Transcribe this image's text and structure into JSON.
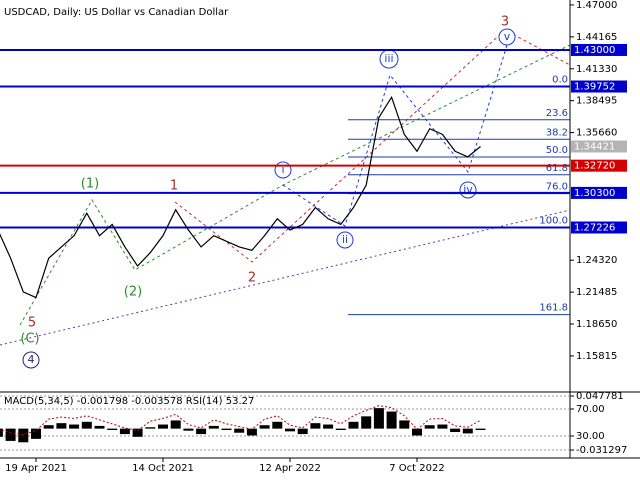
{
  "chart_data": [
    {
      "type": "line",
      "title": "USDCAD, Daily:  US Dollar vs Canadian Dollar",
      "categories": [
        null,
        null,
        null,
        "19 Apr 2021",
        null,
        null,
        null,
        null,
        null,
        null,
        null,
        null,
        null,
        "14 Oct 2021",
        null,
        null,
        null,
        null,
        null,
        null,
        null,
        null,
        null,
        "12 Apr 2022",
        null,
        null,
        null,
        null,
        null,
        null,
        null,
        null,
        null,
        "7 Oct 2022",
        null,
        null,
        null,
        null,
        null
      ],
      "values": [
        1.27,
        1.245,
        1.215,
        1.21,
        1.245,
        1.255,
        1.265,
        1.285,
        1.265,
        1.275,
        1.255,
        1.238,
        1.25,
        1.265,
        1.288,
        1.27,
        1.255,
        1.265,
        1.26,
        1.255,
        1.252,
        1.265,
        1.28,
        1.27,
        1.275,
        1.29,
        1.28,
        1.275,
        1.29,
        1.31,
        1.37,
        1.388,
        1.355,
        1.34,
        1.36,
        1.355,
        1.34,
        1.335,
        1.34421
      ],
      "color": "#000000",
      "ylim": [
        1.1261,
        1.4744
      ],
      "yticks": [
        {
          "value": 1.47,
          "label": "1.47000"
        },
        {
          "value": 1.44165,
          "label": "1.44165"
        },
        {
          "value": 1.4133,
          "label": "1.41330"
        },
        {
          "value": 1.38495,
          "label": "1.38495"
        },
        {
          "value": 1.3566,
          "label": "1.35660"
        },
        {
          "value": 1.2432,
          "label": "1.24320"
        },
        {
          "value": 1.21485,
          "label": "1.21485"
        },
        {
          "value": 1.1865,
          "label": "1.18650"
        },
        {
          "value": 1.15815,
          "label": "1.15815"
        }
      ],
      "levels": [
        {
          "value": 1.43,
          "label": "1.43000",
          "color": "#0000cd",
          "line": true
        },
        {
          "value": 1.39752,
          "label": "1.39752",
          "color": "#0000cd",
          "line": true
        },
        {
          "value": 1.34421,
          "label": "1.34421",
          "color": "#b4b4b4",
          "line": false
        },
        {
          "value": 1.3272,
          "label": "1.32720",
          "color": "#d40000",
          "line": true
        },
        {
          "value": 1.303,
          "label": "1.30300",
          "color": "#0000cd",
          "line": true
        },
        {
          "value": 1.27226,
          "label": "1.27226",
          "color": "#0000cd",
          "line": true
        }
      ],
      "fib": [
        {
          "value": 1.39752,
          "label": "0.0"
        },
        {
          "value": 1.36796,
          "label": "23.6"
        },
        {
          "value": 1.35067,
          "label": "38.2"
        },
        {
          "value": 1.33489,
          "label": "50.0"
        },
        {
          "value": 1.31911,
          "label": "61.8"
        },
        {
          "value": 1.30232,
          "label": "76.0"
        },
        {
          "value": 1.27226,
          "label": "100.0"
        },
        {
          "value": 1.19485,
          "label": "161.8"
        }
      ],
      "fib_color": "#1e3caa",
      "annotations": [
        "(1)",
        "(2)",
        "1",
        "2",
        "5",
        "(C)",
        "4",
        "i",
        "ii",
        "iii",
        "iv",
        "v",
        "3"
      ]
    },
    {
      "type": "bar",
      "title": "MACD(5,34,5) -0.001798 -0.003578 RSI(14) 53.27",
      "color": "#000000",
      "values": [
        -0.012,
        -0.018,
        -0.02,
        -0.015,
        0.005,
        0.008,
        0.006,
        0.01,
        0.004,
        -0.002,
        -0.008,
        -0.012,
        0.002,
        0.006,
        0.012,
        -0.003,
        -0.008,
        0.004,
        -0.002,
        -0.006,
        -0.01,
        0.005,
        0.01,
        -0.004,
        -0.008,
        0.008,
        0.006,
        -0.002,
        0.01,
        0.018,
        0.03,
        0.025,
        0.012,
        -0.01,
        0.005,
        0.006,
        -0.005,
        -0.007,
        -0.002
      ],
      "ylim": [
        -0.04301,
        0.05217
      ],
      "yticks": [
        {
          "value": 0.047781,
          "label": "0.047781"
        },
        {
          "value": -0.031297,
          "label": "-0.031297"
        }
      ],
      "rsi": {
        "axis": "y2",
        "color": "#c00000",
        "values": [
          40,
          35,
          32,
          38,
          55,
          58,
          56,
          60,
          54,
          48,
          42,
          38,
          52,
          56,
          62,
          47,
          42,
          54,
          48,
          44,
          40,
          55,
          60,
          46,
          42,
          58,
          56,
          48,
          60,
          68,
          75,
          72,
          60,
          40,
          55,
          56,
          45,
          43,
          53.27
        ]
      },
      "y2lim": [
        -2.6,
        93.7
      ],
      "y2ticks": [
        {
          "value": 70,
          "label": "70.00"
        },
        {
          "value": 30,
          "label": "30.00"
        }
      ]
    }
  ]
}
